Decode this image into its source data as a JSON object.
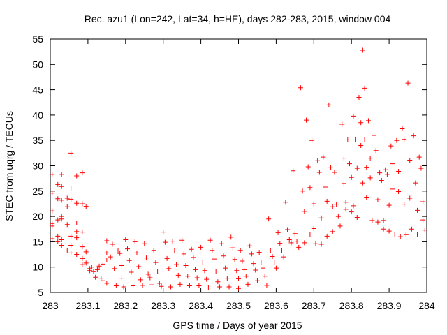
{
  "chart_data": {
    "type": "scatter",
    "title": "Rec. azu1 (Lon=242, Lat=34, h=HE), days 282-283, 2015, window 004",
    "xlabel": "GPS time / Days of year 2015",
    "ylabel": "STEC from uqrg / TECUs",
    "xlim": [
      283,
      284
    ],
    "ylim": [
      5,
      55
    ],
    "xticks": [
      "283",
      "283.1",
      "283.2",
      "283.3",
      "283.4",
      "283.5",
      "283.6",
      "283.7",
      "283.8",
      "283.9",
      "284"
    ],
    "yticks": [
      "5",
      "10",
      "15",
      "20",
      "25",
      "30",
      "35",
      "40",
      "45",
      "50",
      "55"
    ],
    "marker": "+",
    "color": "#ff0000",
    "grid": false,
    "points": [
      [
        283.005,
        28.3
      ],
      [
        283.005,
        24.6
      ],
      [
        283.005,
        21.1
      ],
      [
        283.005,
        18.6
      ],
      [
        283.005,
        18.1
      ],
      [
        283.005,
        15.6
      ],
      [
        283.02,
        26.3
      ],
      [
        283.02,
        23.5
      ],
      [
        283.02,
        19.3
      ],
      [
        283.02,
        16.1
      ],
      [
        283.02,
        15.0
      ],
      [
        283.03,
        28.3
      ],
      [
        283.03,
        25.9
      ],
      [
        283.03,
        23.2
      ],
      [
        283.03,
        20.0
      ],
      [
        283.03,
        19.5
      ],
      [
        283.03,
        15.4
      ],
      [
        283.03,
        14.3
      ],
      [
        283.045,
        23.6
      ],
      [
        283.045,
        21.9
      ],
      [
        283.045,
        18.4
      ],
      [
        283.045,
        13.2
      ],
      [
        283.055,
        32.5
      ],
      [
        283.055,
        25.6
      ],
      [
        283.055,
        23.4
      ],
      [
        283.055,
        16.1
      ],
      [
        283.055,
        14.3
      ],
      [
        283.055,
        12.8
      ],
      [
        283.07,
        28.0
      ],
      [
        283.07,
        22.6
      ],
      [
        283.07,
        18.7
      ],
      [
        283.07,
        17.0
      ],
      [
        283.07,
        15.8
      ],
      [
        283.07,
        12.5
      ],
      [
        283.085,
        28.6
      ],
      [
        283.085,
        22.5
      ],
      [
        283.085,
        16.9
      ],
      [
        283.085,
        14.0
      ],
      [
        283.085,
        11.7
      ],
      [
        283.085,
        10.5
      ],
      [
        283.095,
        22.0
      ],
      [
        283.095,
        13.0
      ],
      [
        283.095,
        10.8
      ],
      [
        283.105,
        9.7
      ],
      [
        283.105,
        9.3
      ],
      [
        283.11,
        10.0
      ],
      [
        283.115,
        9.1
      ],
      [
        283.12,
        8.0
      ],
      [
        283.125,
        9.5
      ],
      [
        283.13,
        10.2
      ],
      [
        283.135,
        7.8
      ],
      [
        283.14,
        7.3
      ],
      [
        283.14,
        10.6
      ],
      [
        283.15,
        15.2
      ],
      [
        283.15,
        12.8
      ],
      [
        283.15,
        11.4
      ],
      [
        283.15,
        6.8
      ],
      [
        283.16,
        12.0
      ],
      [
        283.165,
        14.5
      ],
      [
        283.17,
        9.7
      ],
      [
        283.175,
        6.3
      ],
      [
        283.18,
        13.2
      ],
      [
        283.185,
        12.7
      ],
      [
        283.19,
        10.3
      ],
      [
        283.19,
        7.8
      ],
      [
        283.195,
        6.1
      ],
      [
        283.2,
        15.4
      ],
      [
        283.205,
        13.6
      ],
      [
        283.21,
        11.3
      ],
      [
        283.215,
        9.0
      ],
      [
        283.22,
        6.3
      ],
      [
        283.225,
        15.0
      ],
      [
        283.23,
        12.8
      ],
      [
        283.235,
        10.1
      ],
      [
        283.24,
        7.5
      ],
      [
        283.245,
        6.4
      ],
      [
        283.25,
        14.6
      ],
      [
        283.255,
        11.8
      ],
      [
        283.26,
        8.6
      ],
      [
        283.265,
        7.9
      ],
      [
        283.27,
        6.5
      ],
      [
        283.275,
        13.3
      ],
      [
        283.28,
        10.9
      ],
      [
        283.285,
        9.2
      ],
      [
        283.29,
        6.8
      ],
      [
        283.295,
        6.2
      ],
      [
        283.3,
        16.9
      ],
      [
        283.305,
        14.9
      ],
      [
        283.31,
        11.7
      ],
      [
        283.315,
        9.7
      ],
      [
        283.32,
        6.1
      ],
      [
        283.325,
        15.1
      ],
      [
        283.33,
        13.2
      ],
      [
        283.335,
        10.5
      ],
      [
        283.34,
        8.4
      ],
      [
        283.345,
        6.6
      ],
      [
        283.35,
        15.3
      ],
      [
        283.355,
        12.6
      ],
      [
        283.36,
        10.3
      ],
      [
        283.365,
        8.2
      ],
      [
        283.37,
        6.3
      ],
      [
        283.375,
        13.5
      ],
      [
        283.38,
        11.9
      ],
      [
        283.385,
        9.5
      ],
      [
        283.39,
        7.9
      ],
      [
        283.395,
        6.3
      ],
      [
        283.4,
        13.9
      ],
      [
        283.405,
        11.0
      ],
      [
        283.41,
        9.3
      ],
      [
        283.415,
        7.6
      ],
      [
        283.42,
        5.9
      ],
      [
        283.425,
        15.3
      ],
      [
        283.43,
        13.3
      ],
      [
        283.435,
        11.6
      ],
      [
        283.44,
        9.2
      ],
      [
        283.445,
        7.1
      ],
      [
        283.45,
        6.1
      ],
      [
        283.455,
        14.6
      ],
      [
        283.46,
        12.2
      ],
      [
        283.465,
        9.8
      ],
      [
        283.47,
        7.8
      ],
      [
        283.475,
        6.1
      ],
      [
        283.48,
        15.9
      ],
      [
        283.485,
        13.8
      ],
      [
        283.49,
        11.5
      ],
      [
        283.495,
        9.3
      ],
      [
        283.5,
        7.7
      ],
      [
        283.5,
        5.8
      ],
      [
        283.505,
        13.3
      ],
      [
        283.51,
        11.2
      ],
      [
        283.515,
        9.5
      ],
      [
        283.52,
        8.2
      ],
      [
        283.525,
        6.6
      ],
      [
        283.53,
        14.2
      ],
      [
        283.535,
        12.6
      ],
      [
        283.54,
        10.7
      ],
      [
        283.545,
        9.4
      ],
      [
        283.55,
        7.3
      ],
      [
        283.555,
        12.9
      ],
      [
        283.56,
        11.0
      ],
      [
        283.565,
        9.8
      ],
      [
        283.57,
        8.2
      ],
      [
        283.575,
        6.4
      ],
      [
        283.58,
        19.5
      ],
      [
        283.585,
        13.2
      ],
      [
        283.59,
        12.1
      ],
      [
        283.595,
        11.0
      ],
      [
        283.6,
        9.8
      ],
      [
        283.605,
        16.8
      ],
      [
        283.61,
        14.7
      ],
      [
        283.615,
        13.2
      ],
      [
        283.62,
        12.0
      ],
      [
        283.625,
        22.8
      ],
      [
        283.63,
        17.4
      ],
      [
        283.635,
        15.4
      ],
      [
        283.64,
        14.8
      ],
      [
        283.645,
        29.0
      ],
      [
        283.65,
        16.6
      ],
      [
        283.655,
        15.1
      ],
      [
        283.66,
        13.9
      ],
      [
        283.665,
        45.4
      ],
      [
        283.67,
        25.0
      ],
      [
        283.675,
        21.0
      ],
      [
        283.675,
        14.8
      ],
      [
        283.68,
        39.0
      ],
      [
        283.685,
        29.8
      ],
      [
        283.69,
        25.7
      ],
      [
        283.69,
        16.5
      ],
      [
        283.695,
        35.0
      ],
      [
        283.7,
        22.5
      ],
      [
        283.7,
        17.6
      ],
      [
        283.705,
        14.6
      ],
      [
        283.71,
        31.0
      ],
      [
        283.715,
        28.7
      ],
      [
        283.72,
        19.7
      ],
      [
        283.72,
        14.5
      ],
      [
        283.725,
        31.7
      ],
      [
        283.73,
        25.8
      ],
      [
        283.735,
        23.0
      ],
      [
        283.735,
        16.1
      ],
      [
        283.74,
        42.0
      ],
      [
        283.745,
        29.6
      ],
      [
        283.75,
        21.9
      ],
      [
        283.75,
        17.0
      ],
      [
        283.755,
        28.7
      ],
      [
        283.76,
        22.4
      ],
      [
        283.765,
        20.0
      ],
      [
        283.77,
        18.1
      ],
      [
        283.775,
        38.2
      ],
      [
        283.78,
        31.5
      ],
      [
        283.78,
        26.5
      ],
      [
        283.785,
        22.8
      ],
      [
        283.785,
        21.4
      ],
      [
        283.79,
        35.1
      ],
      [
        283.795,
        30.4
      ],
      [
        283.8,
        27.7
      ],
      [
        283.8,
        20.9
      ],
      [
        283.805,
        22.1
      ],
      [
        283.805,
        39.8
      ],
      [
        283.81,
        35.1
      ],
      [
        283.815,
        29.5
      ],
      [
        283.815,
        19.8
      ],
      [
        283.82,
        43.5
      ],
      [
        283.825,
        38.5
      ],
      [
        283.825,
        34.0
      ],
      [
        283.83,
        26.6
      ],
      [
        283.83,
        52.8
      ],
      [
        283.835,
        45.3
      ],
      [
        283.835,
        35.1
      ],
      [
        283.84,
        29.7
      ],
      [
        283.84,
        23.8
      ],
      [
        283.845,
        38.9
      ],
      [
        283.85,
        31.5
      ],
      [
        283.85,
        27.6
      ],
      [
        283.855,
        19.2
      ],
      [
        283.86,
        36.0
      ],
      [
        283.865,
        33.0
      ],
      [
        283.87,
        23.3
      ],
      [
        283.87,
        18.9
      ],
      [
        283.875,
        28.6
      ],
      [
        283.88,
        27.1
      ],
      [
        283.885,
        19.2
      ],
      [
        283.885,
        17.5
      ],
      [
        283.89,
        29.2
      ],
      [
        283.895,
        28.3
      ],
      [
        283.9,
        22.2
      ],
      [
        283.9,
        17.1
      ],
      [
        283.905,
        33.9
      ],
      [
        283.91,
        30.4
      ],
      [
        283.91,
        25.4
      ],
      [
        283.915,
        16.5
      ],
      [
        283.92,
        35.0
      ],
      [
        283.925,
        28.9
      ],
      [
        283.925,
        24.9
      ],
      [
        283.93,
        16.0
      ],
      [
        283.935,
        37.3
      ],
      [
        283.94,
        35.2
      ],
      [
        283.94,
        22.4
      ],
      [
        283.945,
        16.4
      ],
      [
        283.95,
        46.3
      ],
      [
        283.955,
        31.1
      ],
      [
        283.955,
        23.6
      ],
      [
        283.96,
        17.5
      ],
      [
        283.965,
        35.9
      ],
      [
        283.97,
        26.6
      ],
      [
        283.975,
        21.2
      ],
      [
        283.975,
        16.5
      ],
      [
        283.98,
        31.7
      ],
      [
        283.985,
        29.5
      ],
      [
        283.99,
        22.9
      ],
      [
        283.99,
        19.3
      ],
      [
        283.995,
        17.3
      ]
    ]
  }
}
